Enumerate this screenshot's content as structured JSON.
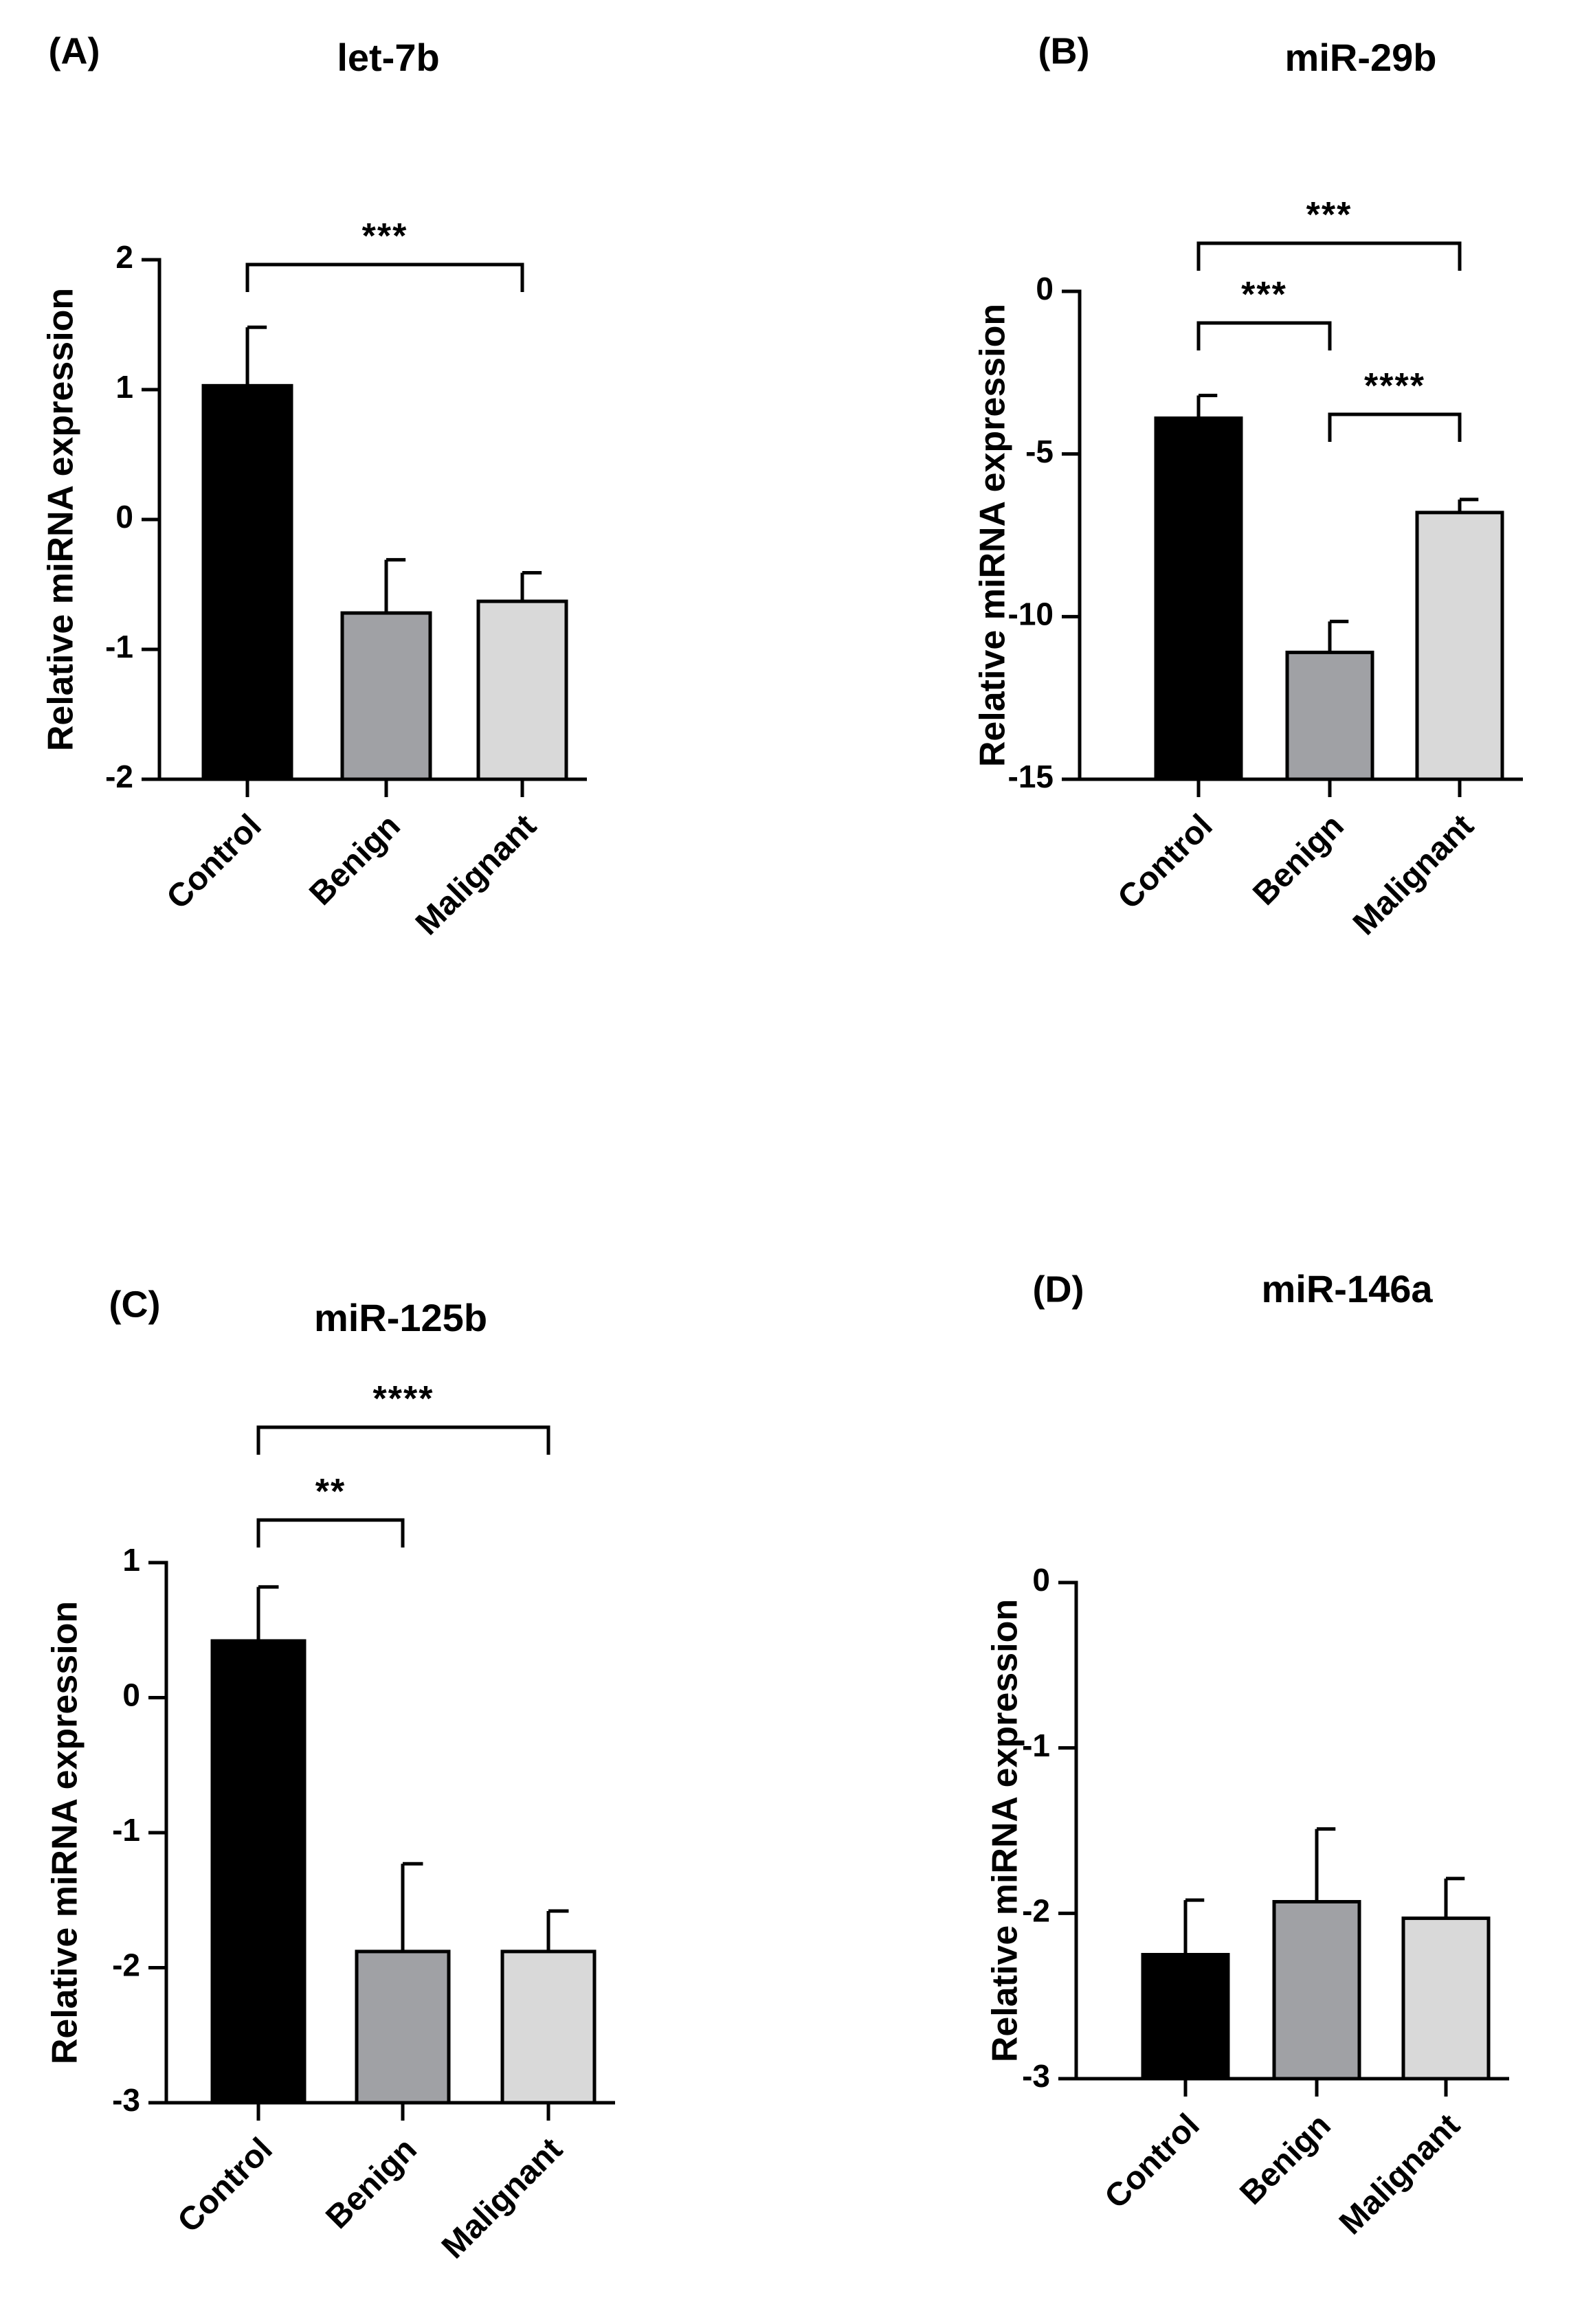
{
  "chart_data": [
    {
      "type": "bar",
      "panel": "(A)",
      "title": "let-7b",
      "xlabel": "",
      "ylabel": "Relative miRNA expression",
      "ylim": [
        -2,
        2
      ],
      "yticks": [
        2,
        1,
        0,
        -1,
        -2
      ],
      "categories": [
        "Control",
        "Benign",
        "Malignant"
      ],
      "values": [
        1.03,
        -0.72,
        -0.63
      ],
      "errors": [
        0.45,
        0.41,
        0.22
      ],
      "colors": [
        "#000000",
        "#a0a1a5",
        "#d9d9d9"
      ],
      "significance": [
        {
          "from": 0,
          "to": 2,
          "label": "***"
        }
      ]
    },
    {
      "type": "bar",
      "panel": "(B)",
      "title": "miR-29b",
      "xlabel": "",
      "ylabel": "Relative miRNA expression",
      "ylim": [
        -15,
        0
      ],
      "yticks": [
        0,
        -5,
        -10,
        -15
      ],
      "categories": [
        "Control",
        "Benign",
        "Malignant"
      ],
      "values": [
        -3.9,
        -11.1,
        -6.8
      ],
      "errors": [
        0.7,
        0.95,
        0.4
      ],
      "colors": [
        "#000000",
        "#a0a1a5",
        "#d9d9d9"
      ],
      "significance": [
        {
          "from": 0,
          "to": 2,
          "label": "***"
        },
        {
          "from": 0,
          "to": 1,
          "label": "***"
        },
        {
          "from": 1,
          "to": 2,
          "label": "****"
        }
      ]
    },
    {
      "type": "bar",
      "panel": "(C)",
      "title": "miR-125b",
      "xlabel": "",
      "ylabel": "Relative miRNA expression",
      "ylim": [
        -3,
        1
      ],
      "yticks": [
        1,
        0,
        -1,
        -2,
        -3
      ],
      "categories": [
        "Control",
        "Benign",
        "Malignant"
      ],
      "values": [
        0.42,
        -1.88,
        -1.88
      ],
      "errors": [
        0.4,
        0.65,
        0.3
      ],
      "colors": [
        "#000000",
        "#a0a1a5",
        "#d9d9d9"
      ],
      "significance": [
        {
          "from": 0,
          "to": 2,
          "label": "****"
        },
        {
          "from": 0,
          "to": 1,
          "label": "**"
        }
      ]
    },
    {
      "type": "bar",
      "panel": "(D)",
      "title": "miR-146a",
      "xlabel": "",
      "ylabel": "Relative miRNA expression",
      "ylim": [
        -3,
        0
      ],
      "yticks": [
        0,
        -1,
        -2,
        -3
      ],
      "categories": [
        "Control",
        "Benign",
        "Malignant"
      ],
      "values": [
        -2.25,
        -1.93,
        -2.03
      ],
      "errors": [
        0.33,
        0.44,
        0.24
      ],
      "colors": [
        "#000000",
        "#a0a1a5",
        "#d9d9d9"
      ],
      "significance": []
    }
  ]
}
